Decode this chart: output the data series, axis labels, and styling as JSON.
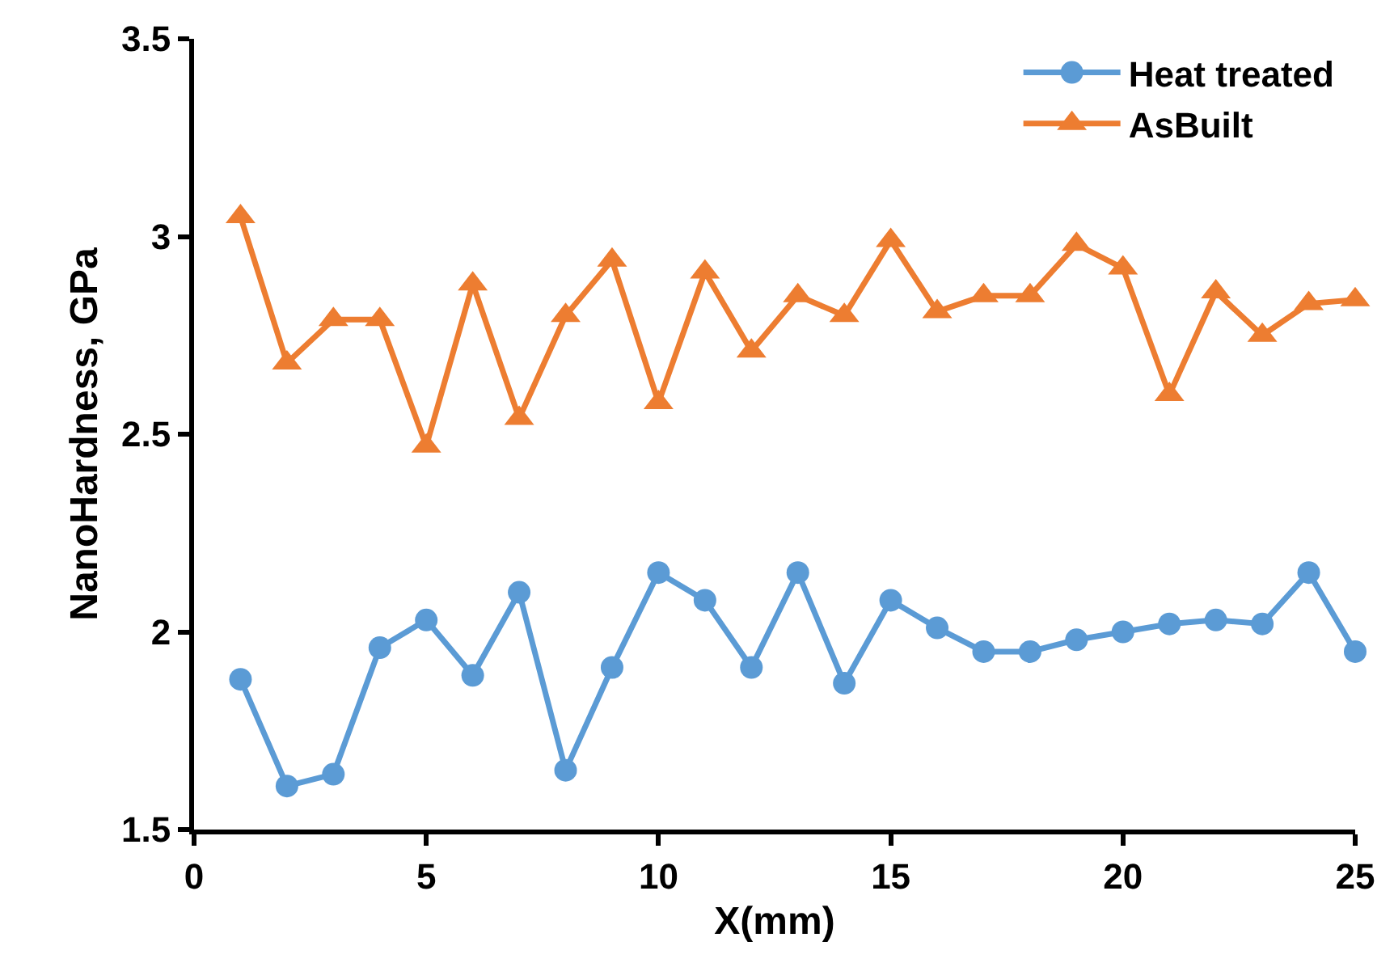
{
  "chart_data": {
    "type": "line",
    "xlabel": "X(mm)",
    "ylabel": "NanoHardness, GPa",
    "x": [
      1,
      2,
      3,
      4,
      5,
      6,
      7,
      8,
      9,
      10,
      11,
      12,
      13,
      14,
      15,
      16,
      17,
      18,
      19,
      20,
      21,
      22,
      23,
      24,
      25
    ],
    "series": [
      {
        "name": "Heat treated",
        "color": "#5b9bd5",
        "marker": "circle",
        "values": [
          1.88,
          1.61,
          1.64,
          1.96,
          2.03,
          1.89,
          2.1,
          1.65,
          1.91,
          2.15,
          2.08,
          1.91,
          2.15,
          1.87,
          2.08,
          2.01,
          1.95,
          1.95,
          1.98,
          2.0,
          2.02,
          2.03,
          2.02,
          2.15,
          1.95
        ]
      },
      {
        "name": "AsBuilt",
        "color": "#ed7d31",
        "marker": "triangle",
        "values": [
          3.05,
          2.68,
          2.79,
          2.79,
          2.47,
          2.88,
          2.54,
          2.8,
          2.94,
          2.58,
          2.91,
          2.71,
          2.85,
          2.8,
          2.99,
          2.81,
          2.85,
          2.85,
          2.98,
          2.92,
          2.6,
          2.86,
          2.75,
          2.83,
          2.84
        ]
      }
    ],
    "xlim": [
      0,
      25
    ],
    "xticks": [
      0,
      5,
      10,
      15,
      20,
      25
    ],
    "ylim": [
      1.5,
      3.5
    ],
    "yticks": [
      1.5,
      2,
      2.5,
      3,
      3.5
    ],
    "grid": false,
    "legend": "top right",
    "line_style": "solid"
  }
}
